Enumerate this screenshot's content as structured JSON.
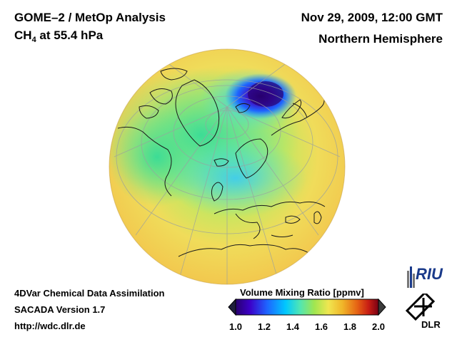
{
  "header": {
    "title": "GOME–2 / MetOp Analysis",
    "species_main": "CH",
    "species_sub": "4",
    "species_rest": " at 55.4 hPa",
    "datetime": "Nov 29, 2009, 12:00 GMT",
    "hemisphere": "Northern Hemisphere"
  },
  "footer": {
    "line1": "4DVar Chemical Data Assimilation",
    "line2": "SACADA Version 1.7",
    "url": "http://wdc.dlr.de"
  },
  "colorbar": {
    "title": "Volume Mixing Ratio [ppmv]",
    "ticks": [
      "1.0",
      "1.2",
      "1.4",
      "1.6",
      "1.8",
      "2.0"
    ],
    "range": [
      1.0,
      2.0
    ],
    "colors": [
      "#28006e",
      "#3c00c8",
      "#1e64ff",
      "#00c8ff",
      "#50e6b4",
      "#a0e650",
      "#f0e650",
      "#f0b428",
      "#e66414",
      "#c81e14",
      "#780014"
    ]
  },
  "logos": {
    "riu": "RIU",
    "dlr": "DLR"
  },
  "map": {
    "projection": "orthographic",
    "colors": {
      "ocean_background": "#f0c850",
      "low": "#28006e",
      "mid_blue": "#1e64ff",
      "cyan": "#3cd2ff",
      "green": "#50e6a0",
      "yellow": "#f0dc5a"
    }
  }
}
